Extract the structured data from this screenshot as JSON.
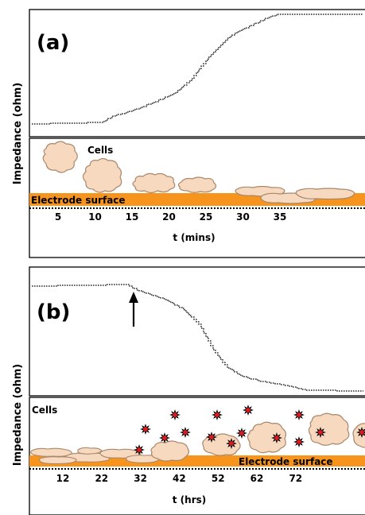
{
  "colors": {
    "electrode": "#f7941d",
    "cell_fill": "#f6d9bf",
    "cell_stroke": "#a8876b",
    "marker_fill": "#d71920",
    "frame": "#000000"
  },
  "panel_a": {
    "label": "(a)",
    "y_label": "Impedance (ohm)",
    "cells_label": "Cells",
    "electrode_label": "Electrode surface",
    "x_title": "t (mins)",
    "ticks": [
      "5",
      "10",
      "15",
      "20",
      "25",
      "30",
      "35"
    ],
    "trend": "rising"
  },
  "panel_b": {
    "label": "(b)",
    "y_label": "Impedance (ohm)",
    "cells_label": "Cells",
    "electrode_label": "Electrode surface",
    "x_title": "t (hrs)",
    "ticks": [
      "12",
      "22",
      "32",
      "42",
      "52",
      "62",
      "72"
    ],
    "trend": "falling",
    "arrow": "up-arrow"
  }
}
